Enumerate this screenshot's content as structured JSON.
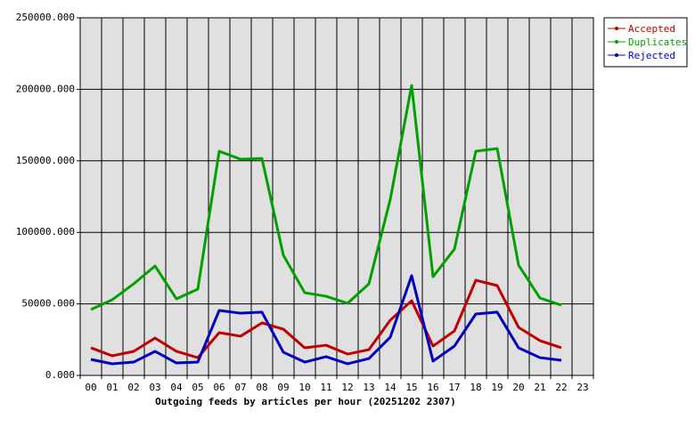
{
  "chart_data": {
    "type": "line",
    "xlabel": "Outgoing feeds by articles per hour (20251202 2307)",
    "categories": [
      "00",
      "01",
      "02",
      "03",
      "04",
      "05",
      "06",
      "07",
      "08",
      "09",
      "10",
      "11",
      "12",
      "13",
      "14",
      "15",
      "16",
      "17",
      "18",
      "19",
      "20",
      "21",
      "22",
      "23"
    ],
    "series": [
      {
        "name": "Accepted",
        "color": "#c00000",
        "values": [
          19300,
          13700,
          16800,
          26100,
          16800,
          12400,
          29900,
          27400,
          36700,
          32300,
          19300,
          21100,
          14900,
          18000,
          38600,
          52200,
          20500,
          31100,
          66500,
          62800,
          33600,
          24300,
          19300,
          null
        ]
      },
      {
        "name": "Duplicates",
        "color": "#00a000",
        "values": [
          46000,
          52900,
          64000,
          76500,
          53500,
          60300,
          156700,
          151100,
          151700,
          84000,
          57800,
          55300,
          50400,
          64000,
          123100,
          202700,
          69000,
          88300,
          156700,
          158600,
          77100,
          54100,
          49100,
          null
        ]
      },
      {
        "name": "Rejected",
        "color": "#0000c0",
        "values": [
          11200,
          8100,
          9300,
          16800,
          8700,
          9300,
          45400,
          43500,
          44200,
          16200,
          9300,
          13100,
          8100,
          11800,
          26700,
          69700,
          10000,
          20500,
          42900,
          44200,
          19300,
          12400,
          10600,
          null
        ]
      }
    ],
    "ylim": [
      0,
      250000
    ],
    "yticks": [
      {
        "value": 0,
        "label": "0.000"
      },
      {
        "value": 50000,
        "label": "50000.000"
      },
      {
        "value": 100000,
        "label": "100000.000"
      },
      {
        "value": 150000,
        "label": "150000.000"
      },
      {
        "value": 200000,
        "label": "200000.000"
      },
      {
        "value": 250000,
        "label": "250000.000"
      }
    ],
    "grid": true,
    "legend": "top-right"
  }
}
